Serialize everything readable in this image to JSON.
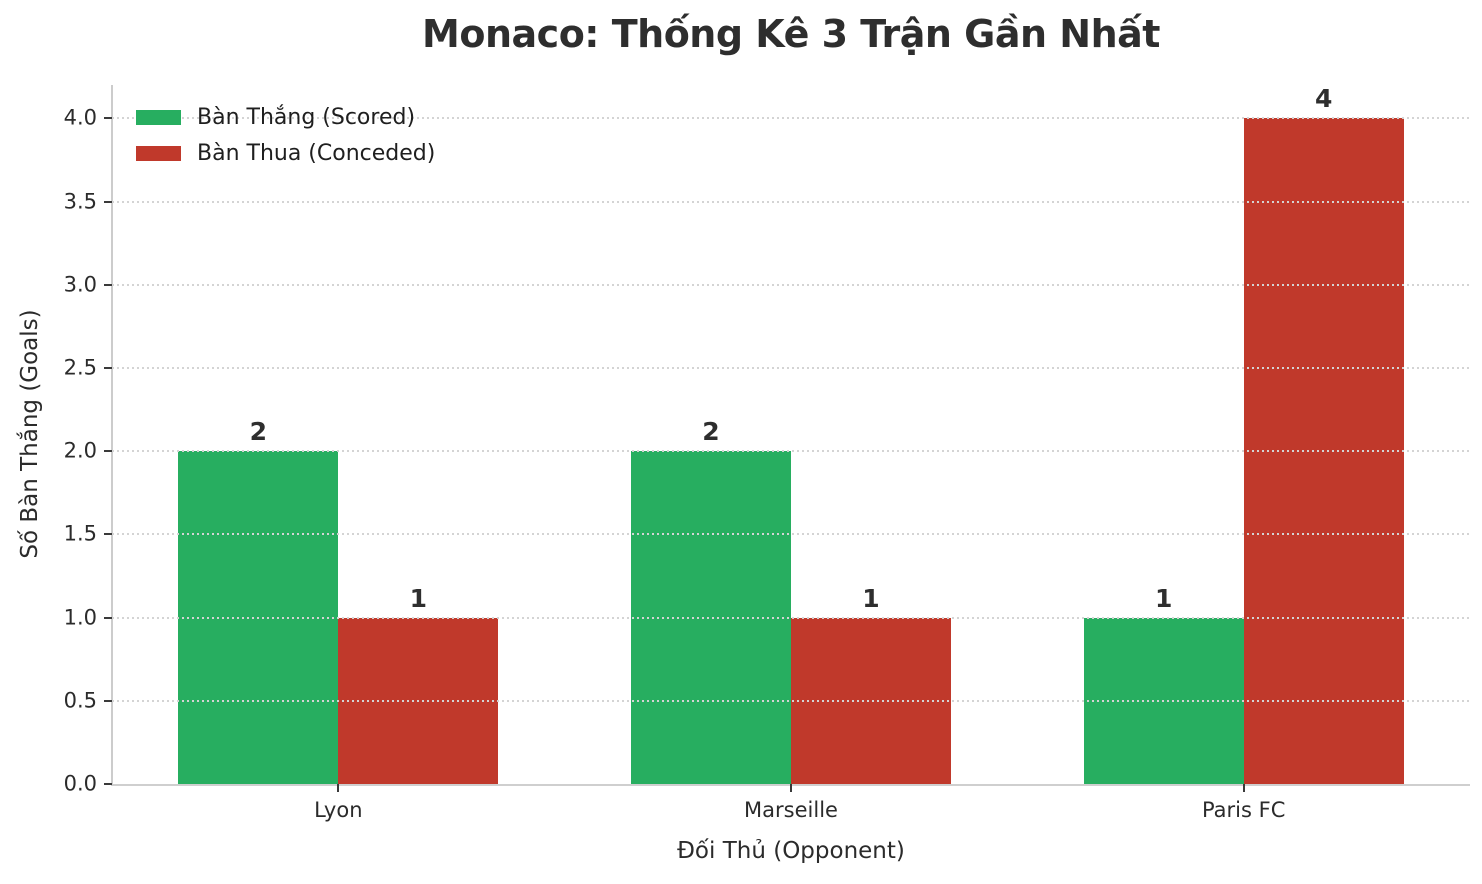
{
  "title": "Monaco: Thống Kê 3 Trận Gần Nhất",
  "chart_data": {
    "type": "bar",
    "categories": [
      "Lyon",
      "Marseille",
      "Paris FC"
    ],
    "series": [
      {
        "key": "scored",
        "name": "Bàn Thắng (Scored)",
        "color": "#27ae60",
        "values": [
          2,
          2,
          1
        ]
      },
      {
        "key": "conceded",
        "name": "Bàn Thua (Conceded)",
        "color": "#c0392b",
        "values": [
          1,
          1,
          4
        ]
      }
    ],
    "title": "Monaco: Thống Kê 3 Trận Gần Nhất",
    "xlabel": "Đối Thủ (Opponent)",
    "ylabel": "Số Bàn Thắng (Goals)",
    "ylim": [
      0,
      4.2
    ],
    "y_ticks": [
      0,
      0.5,
      1,
      1.5,
      2,
      2.5,
      3,
      3.5,
      4
    ],
    "y_tick_labels": [
      "0.0",
      "0.5",
      "1.0",
      "1.5",
      "2.0",
      "2.5",
      "3.0",
      "3.5",
      "4.0"
    ],
    "grid": "horizontal dotted, drawn over bars",
    "legend_position": "upper-left",
    "bar_value_labels": true,
    "background": "#ffffff"
  }
}
